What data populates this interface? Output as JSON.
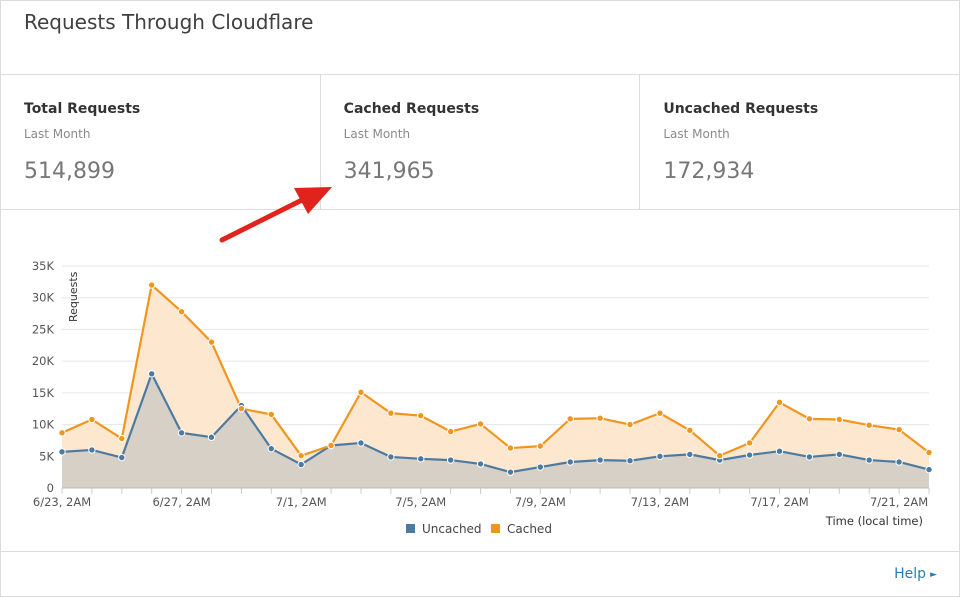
{
  "card": {
    "title": "Requests Through Cloudflare"
  },
  "stats": [
    {
      "label": "Total Requests",
      "period": "Last Month",
      "value": "514,899"
    },
    {
      "label": "Cached Requests",
      "period": "Last Month",
      "value": "341,965"
    },
    {
      "label": "Uncached Requests",
      "period": "Last Month",
      "value": "172,934"
    }
  ],
  "annotation": {
    "icon": "red-arrow-icon",
    "color": "#e0231b"
  },
  "footer": {
    "help_label": "Help"
  },
  "colors": {
    "cached": "#f0961f",
    "uncached": "#4d7aa0",
    "cached_fill": "#fde7cf",
    "uncached_fill": "#d6d0c7"
  },
  "chart_data": {
    "type": "area",
    "ylabel": "Requests",
    "xlabel": "Time (local time)",
    "ylim": [
      0,
      35000
    ],
    "y_ticks": [
      "0",
      "5K",
      "10K",
      "15K",
      "20K",
      "25K",
      "30K",
      "35K"
    ],
    "x_tick_labels": [
      "6/23, 2AM",
      "6/27, 2AM",
      "7/1, 2AM",
      "7/5, 2AM",
      "7/9, 2AM",
      "7/13, 2AM",
      "7/17, 2AM",
      "7/21, 2AM"
    ],
    "legend": "bottom",
    "series": [
      {
        "name": "Uncached",
        "values": [
          5700,
          6000,
          4800,
          18000,
          8700,
          8000,
          13000,
          6200,
          3700,
          6700,
          7100,
          4900,
          4600,
          4400,
          3800,
          2500,
          3300,
          4100,
          4400,
          4300,
          5000,
          5300,
          4400,
          5200,
          5800,
          4900,
          5300,
          4400,
          4100,
          2900
        ]
      },
      {
        "name": "Cached",
        "values": [
          8700,
          10800,
          7800,
          32000,
          27800,
          23000,
          12500,
          11600,
          5100,
          6700,
          15100,
          11800,
          11400,
          8900,
          10100,
          6300,
          6600,
          10900,
          11000,
          10000,
          11800,
          9100,
          5100,
          7100,
          13500,
          10900,
          10800,
          9900,
          9200,
          5600
        ]
      }
    ]
  }
}
